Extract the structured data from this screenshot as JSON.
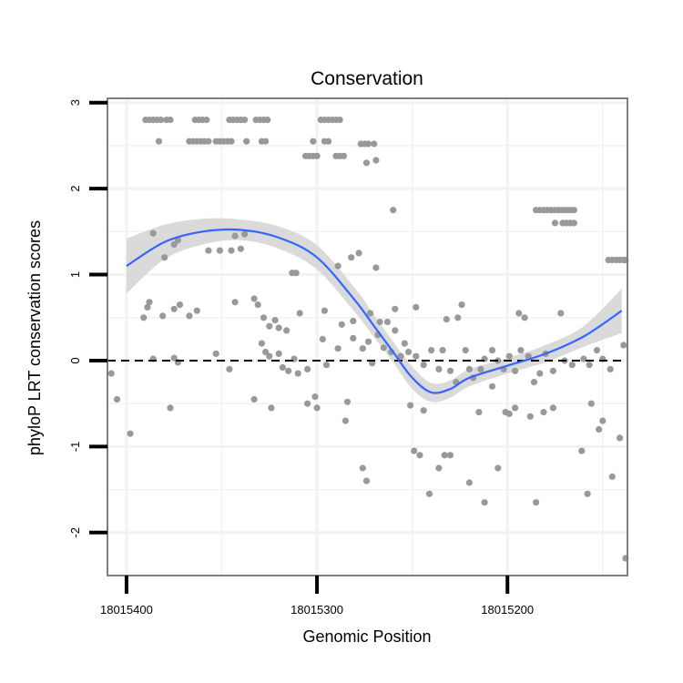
{
  "chart_data": {
    "type": "scatter",
    "title": "Conservation",
    "xlabel": "Genomic Position",
    "ylabel": "phyloP LRT conservation scores",
    "x_reversed": true,
    "xlim": [
      18015410,
      18015137
    ],
    "ylim": [
      -2.5,
      3.05
    ],
    "x_ticks": [
      18015400,
      18015300,
      18015200
    ],
    "x_tick_labels": [
      "18015400",
      "18015300",
      "18015200"
    ],
    "y_ticks": [
      -2,
      -1,
      0,
      1,
      2,
      3
    ],
    "y_tick_labels": [
      "-2",
      "-1",
      "0",
      "1",
      "2",
      "3"
    ],
    "grid": true,
    "reference_line": {
      "y": 0,
      "style": "dashed"
    },
    "colors": {
      "points": "#999999",
      "smooth": "#3366FF",
      "ribbon": "#D3D3D3",
      "panel_border": "#7F7F7F",
      "grid": "#F2F2F2"
    },
    "points": [
      [
        18015390,
        2.8
      ],
      [
        18015388,
        2.8
      ],
      [
        18015386,
        2.8
      ],
      [
        18015384,
        2.8
      ],
      [
        18015382,
        2.8
      ],
      [
        18015379,
        2.8
      ],
      [
        18015377,
        2.8
      ],
      [
        18015364,
        2.8
      ],
      [
        18015362,
        2.8
      ],
      [
        18015360,
        2.8
      ],
      [
        18015358,
        2.8
      ],
      [
        18015346,
        2.8
      ],
      [
        18015344,
        2.8
      ],
      [
        18015342,
        2.8
      ],
      [
        18015340,
        2.8
      ],
      [
        18015338,
        2.8
      ],
      [
        18015332,
        2.8
      ],
      [
        18015330,
        2.8
      ],
      [
        18015328,
        2.8
      ],
      [
        18015326,
        2.8
      ],
      [
        18015298,
        2.8
      ],
      [
        18015296,
        2.8
      ],
      [
        18015294,
        2.8
      ],
      [
        18015292,
        2.8
      ],
      [
        18015290,
        2.8
      ],
      [
        18015288,
        2.8
      ],
      [
        18015383,
        2.55
      ],
      [
        18015367,
        2.55
      ],
      [
        18015365,
        2.55
      ],
      [
        18015363,
        2.55
      ],
      [
        18015361,
        2.55
      ],
      [
        18015359,
        2.55
      ],
      [
        18015357,
        2.55
      ],
      [
        18015353,
        2.55
      ],
      [
        18015351,
        2.55
      ],
      [
        18015349,
        2.55
      ],
      [
        18015347,
        2.55
      ],
      [
        18015345,
        2.55
      ],
      [
        18015337,
        2.55
      ],
      [
        18015329,
        2.55
      ],
      [
        18015327,
        2.55
      ],
      [
        18015302,
        2.55
      ],
      [
        18015296,
        2.55
      ],
      [
        18015294,
        2.55
      ],
      [
        18015277,
        2.52
      ],
      [
        18015275,
        2.52
      ],
      [
        18015273,
        2.52
      ],
      [
        18015270,
        2.52
      ],
      [
        18015306,
        2.38
      ],
      [
        18015304,
        2.38
      ],
      [
        18015302,
        2.38
      ],
      [
        18015300,
        2.38
      ],
      [
        18015290,
        2.38
      ],
      [
        18015288,
        2.38
      ],
      [
        18015286,
        2.38
      ],
      [
        18015274,
        2.3
      ],
      [
        18015269,
        2.33
      ],
      [
        18015260,
        1.75
      ],
      [
        18015185,
        1.75
      ],
      [
        18015183,
        1.75
      ],
      [
        18015181,
        1.75
      ],
      [
        18015179,
        1.75
      ],
      [
        18015177,
        1.75
      ],
      [
        18015175,
        1.75
      ],
      [
        18015173,
        1.75
      ],
      [
        18015171,
        1.75
      ],
      [
        18015169,
        1.75
      ],
      [
        18015167,
        1.75
      ],
      [
        18015165,
        1.75
      ],
      [
        18015175,
        1.6
      ],
      [
        18015171,
        1.6
      ],
      [
        18015169,
        1.6
      ],
      [
        18015167,
        1.6
      ],
      [
        18015165,
        1.6
      ],
      [
        18015147,
        1.17
      ],
      [
        18015145,
        1.17
      ],
      [
        18015143,
        1.17
      ],
      [
        18015141,
        1.17
      ],
      [
        18015139,
        1.17
      ],
      [
        18015138,
        1.17
      ],
      [
        18015386,
        1.48
      ],
      [
        18015373,
        1.4
      ],
      [
        18015375,
        1.35
      ],
      [
        18015357,
        1.28
      ],
      [
        18015351,
        1.28
      ],
      [
        18015345,
        1.28
      ],
      [
        18015343,
        1.45
      ],
      [
        18015340,
        1.3
      ],
      [
        18015338,
        1.47
      ],
      [
        18015380,
        1.2
      ],
      [
        18015278,
        1.25
      ],
      [
        18015282,
        1.2
      ],
      [
        18015269,
        1.08
      ],
      [
        18015289,
        1.1
      ],
      [
        18015311,
        1.02
      ],
      [
        18015313,
        1.02
      ],
      [
        18015391,
        0.5
      ],
      [
        18015389,
        0.62
      ],
      [
        18015388,
        0.68
      ],
      [
        18015381,
        0.52
      ],
      [
        18015375,
        0.6
      ],
      [
        18015372,
        0.65
      ],
      [
        18015367,
        0.52
      ],
      [
        18015363,
        0.58
      ],
      [
        18015343,
        0.68
      ],
      [
        18015333,
        0.72
      ],
      [
        18015331,
        0.65
      ],
      [
        18015328,
        0.5
      ],
      [
        18015325,
        0.4
      ],
      [
        18015322,
        0.47
      ],
      [
        18015320,
        0.38
      ],
      [
        18015316,
        0.35
      ],
      [
        18015309,
        0.55
      ],
      [
        18015296,
        0.58
      ],
      [
        18015287,
        0.42
      ],
      [
        18015281,
        0.46
      ],
      [
        18015272,
        0.55
      ],
      [
        18015267,
        0.45
      ],
      [
        18015259,
        0.6
      ],
      [
        18015263,
        0.45
      ],
      [
        18015248,
        0.62
      ],
      [
        18015224,
        0.65
      ],
      [
        18015226,
        0.5
      ],
      [
        18015232,
        0.48
      ],
      [
        18015194,
        0.55
      ],
      [
        18015191,
        0.5
      ],
      [
        18015172,
        0.55
      ],
      [
        18015386,
        0.02
      ],
      [
        18015375,
        0.03
      ],
      [
        18015373,
        -0.02
      ],
      [
        18015353,
        0.08
      ],
      [
        18015329,
        0.2
      ],
      [
        18015327,
        0.1
      ],
      [
        18015325,
        0.05
      ],
      [
        18015320,
        0.08
      ],
      [
        18015318,
        -0.08
      ],
      [
        18015315,
        -0.12
      ],
      [
        18015312,
        0.02
      ],
      [
        18015310,
        -0.15
      ],
      [
        18015305,
        -0.1
      ],
      [
        18015297,
        0.25
      ],
      [
        18015295,
        -0.05
      ],
      [
        18015289,
        0.14
      ],
      [
        18015281,
        0.26
      ],
      [
        18015276,
        0.14
      ],
      [
        18015273,
        0.22
      ],
      [
        18015271,
        -0.03
      ],
      [
        18015268,
        0.3
      ],
      [
        18015265,
        0.15
      ],
      [
        18015261,
        0.1
      ],
      [
        18015259,
        0.35
      ],
      [
        18015256,
        0.05
      ],
      [
        18015254,
        0.2
      ],
      [
        18015252,
        0.1
      ],
      [
        18015248,
        0.05
      ],
      [
        18015244,
        -0.05
      ],
      [
        18015240,
        0.12
      ],
      [
        18015236,
        -0.1
      ],
      [
        18015234,
        0.12
      ],
      [
        18015230,
        -0.12
      ],
      [
        18015227,
        -0.25
      ],
      [
        18015222,
        0.12
      ],
      [
        18015220,
        -0.1
      ],
      [
        18015218,
        -0.2
      ],
      [
        18015214,
        -0.1
      ],
      [
        18015212,
        0.02
      ],
      [
        18015208,
        0.12
      ],
      [
        18015205,
        0.0
      ],
      [
        18015202,
        -0.1
      ],
      [
        18015199,
        0.05
      ],
      [
        18015196,
        -0.12
      ],
      [
        18015193,
        0.12
      ],
      [
        18015189,
        0.05
      ],
      [
        18015186,
        -0.25
      ],
      [
        18015183,
        -0.15
      ],
      [
        18015180,
        0.08
      ],
      [
        18015176,
        -0.12
      ],
      [
        18015170,
        0.0
      ],
      [
        18015166,
        -0.05
      ],
      [
        18015160,
        0.02
      ],
      [
        18015157,
        -0.05
      ],
      [
        18015153,
        0.12
      ],
      [
        18015150,
        0.02
      ],
      [
        18015146,
        -0.1
      ],
      [
        18015408,
        -0.15
      ],
      [
        18015405,
        -0.45
      ],
      [
        18015398,
        -0.85
      ],
      [
        18015377,
        -0.55
      ],
      [
        18015346,
        -0.1
      ],
      [
        18015333,
        -0.45
      ],
      [
        18015324,
        -0.55
      ],
      [
        18015305,
        -0.5
      ],
      [
        18015301,
        -0.42
      ],
      [
        18015300,
        -0.55
      ],
      [
        18015285,
        -0.7
      ],
      [
        18015284,
        -0.48
      ],
      [
        18015276,
        -1.25
      ],
      [
        18015274,
        -1.4
      ],
      [
        18015251,
        -0.52
      ],
      [
        18015249,
        -1.05
      ],
      [
        18015246,
        -1.1
      ],
      [
        18015244,
        -0.58
      ],
      [
        18015241,
        -1.55
      ],
      [
        18015236,
        -1.25
      ],
      [
        18015233,
        -1.1
      ],
      [
        18015230,
        -1.1
      ],
      [
        18015220,
        -1.42
      ],
      [
        18015215,
        -0.6
      ],
      [
        18015212,
        -1.65
      ],
      [
        18015208,
        -0.3
      ],
      [
        18015205,
        -1.25
      ],
      [
        18015201,
        -0.6
      ],
      [
        18015199,
        -0.62
      ],
      [
        18015196,
        -0.55
      ],
      [
        18015188,
        -0.65
      ],
      [
        18015185,
        -1.65
      ],
      [
        18015181,
        -0.6
      ],
      [
        18015176,
        -0.55
      ],
      [
        18015161,
        -1.05
      ],
      [
        18015158,
        -1.55
      ],
      [
        18015156,
        -0.5
      ],
      [
        18015152,
        -0.8
      ],
      [
        18015150,
        -0.7
      ],
      [
        18015145,
        -1.35
      ],
      [
        18015141,
        -0.9
      ],
      [
        18015138,
        -2.3
      ],
      [
        18015139,
        0.18
      ]
    ],
    "smooth": {
      "x": [
        18015400,
        18015380,
        18015360,
        18015340,
        18015320,
        18015300,
        18015280,
        18015270,
        18015260,
        18015250,
        18015240,
        18015230,
        18015220,
        18015200,
        18015180,
        18015160,
        18015140
      ],
      "y": [
        1.1,
        1.38,
        1.5,
        1.52,
        1.43,
        1.2,
        0.7,
        0.4,
        0.1,
        -0.2,
        -0.37,
        -0.33,
        -0.2,
        -0.06,
        0.08,
        0.28,
        0.58
      ],
      "lower": [
        0.78,
        1.18,
        1.35,
        1.4,
        1.3,
        1.06,
        0.56,
        0.27,
        -0.02,
        -0.33,
        -0.48,
        -0.43,
        -0.3,
        -0.15,
        -0.02,
        0.16,
        0.32
      ],
      "upper": [
        1.42,
        1.58,
        1.65,
        1.64,
        1.56,
        1.34,
        0.84,
        0.53,
        0.22,
        -0.07,
        -0.26,
        -0.23,
        -0.1,
        0.03,
        0.18,
        0.4,
        0.84
      ]
    }
  }
}
